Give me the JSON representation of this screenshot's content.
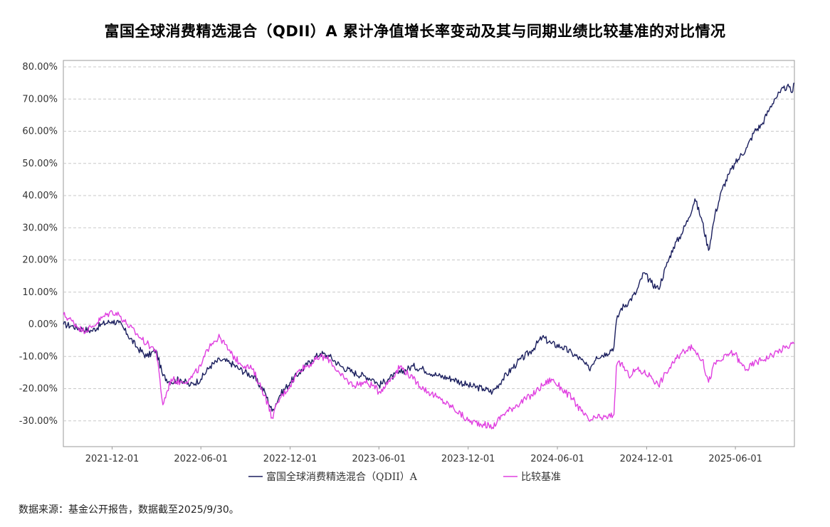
{
  "title": "富国全球消费精选混合（QDII）A 累计净值增长率变动及其与同期业绩比较基准的对比情况",
  "source_note": "数据来源：基金公开报告，数据截至2025/9/30。",
  "chart_data": {
    "type": "line",
    "title": "富国全球消费精选混合（QDII）A 累计净值增长率变动及其与同期业绩比较基准的对比情况",
    "xlabel": "",
    "ylabel": "",
    "x_range": [
      "2021-08-23",
      "2025-09-30"
    ],
    "x_tick_labels": [
      "2021-12-01",
      "2022-06-01",
      "2022-12-01",
      "2023-06-01",
      "2023-12-01",
      "2024-06-01",
      "2024-12-01",
      "2025-06-01"
    ],
    "y_tick_labels": [
      "80.00%",
      "70.00%",
      "60.00%",
      "50.00%",
      "40.00%",
      "30.00%",
      "20.00%",
      "10.00%",
      "0.00%",
      "-10.00%",
      "-20.00%",
      "-30.00%"
    ],
    "ylim": [
      -38,
      82
    ],
    "y_unit": "%",
    "grid": "horizontal dashed",
    "legend_position": "bottom-center",
    "series": [
      {
        "name": "富国全球消费精选混合（QDII）A",
        "color": "#1b1f5e",
        "points": [
          [
            "2021-08-23",
            0
          ],
          [
            "2021-09-10",
            -0.5
          ],
          [
            "2021-10-01",
            -1.5
          ],
          [
            "2021-10-20",
            -2
          ],
          [
            "2021-11-10",
            0
          ],
          [
            "2021-12-01",
            1
          ],
          [
            "2021-12-15",
            0.5
          ],
          [
            "2022-01-01",
            -3
          ],
          [
            "2022-01-20",
            -7
          ],
          [
            "2022-02-10",
            -10
          ],
          [
            "2022-03-01",
            -8
          ],
          [
            "2022-03-15",
            -16
          ],
          [
            "2022-04-01",
            -18
          ],
          [
            "2022-04-20",
            -17
          ],
          [
            "2022-05-10",
            -19
          ],
          [
            "2022-06-01",
            -17
          ],
          [
            "2022-06-20",
            -13
          ],
          [
            "2022-07-10",
            -11
          ],
          [
            "2022-08-01",
            -12
          ],
          [
            "2022-08-20",
            -14
          ],
          [
            "2022-09-15",
            -16
          ],
          [
            "2022-10-10",
            -21
          ],
          [
            "2022-10-25",
            -27
          ],
          [
            "2022-11-10",
            -22
          ],
          [
            "2022-12-01",
            -18
          ],
          [
            "2022-12-20",
            -15
          ],
          [
            "2023-01-15",
            -11
          ],
          [
            "2023-02-01",
            -9
          ],
          [
            "2023-02-20",
            -10
          ],
          [
            "2023-03-15",
            -13
          ],
          [
            "2023-04-10",
            -15
          ],
          [
            "2023-05-01",
            -16
          ],
          [
            "2023-05-20",
            -17
          ],
          [
            "2023-06-01",
            -19
          ],
          [
            "2023-06-20",
            -17
          ],
          [
            "2023-07-15",
            -15
          ],
          [
            "2023-08-10",
            -13
          ],
          [
            "2023-09-01",
            -14
          ],
          [
            "2023-10-01",
            -16
          ],
          [
            "2023-11-01",
            -17
          ],
          [
            "2023-12-01",
            -19
          ],
          [
            "2024-01-01",
            -20
          ],
          [
            "2024-01-20",
            -21
          ],
          [
            "2024-02-10",
            -17
          ],
          [
            "2024-03-10",
            -12
          ],
          [
            "2024-04-10",
            -8
          ],
          [
            "2024-05-01",
            -4
          ],
          [
            "2024-05-20",
            -6
          ],
          [
            "2024-06-10",
            -7
          ],
          [
            "2024-07-01",
            -9
          ],
          [
            "2024-07-20",
            -11
          ],
          [
            "2024-08-05",
            -14
          ],
          [
            "2024-08-20",
            -10
          ],
          [
            "2024-09-10",
            -9
          ],
          [
            "2024-09-25",
            -7
          ],
          [
            "2024-09-30",
            1
          ],
          [
            "2024-10-10",
            5
          ],
          [
            "2024-10-25",
            7
          ],
          [
            "2024-11-10",
            10
          ],
          [
            "2024-11-25",
            16
          ],
          [
            "2024-12-10",
            13
          ],
          [
            "2024-12-25",
            11
          ],
          [
            "2025-01-10",
            18
          ],
          [
            "2025-01-25",
            24
          ],
          [
            "2025-02-10",
            28
          ],
          [
            "2025-02-25",
            33
          ],
          [
            "2025-03-10",
            39
          ],
          [
            "2025-03-25",
            32
          ],
          [
            "2025-04-07",
            23
          ],
          [
            "2025-04-20",
            34
          ],
          [
            "2025-05-05",
            42
          ],
          [
            "2025-05-20",
            47
          ],
          [
            "2025-06-01",
            50
          ],
          [
            "2025-06-10",
            52
          ],
          [
            "2025-06-25",
            55
          ],
          [
            "2025-07-10",
            60
          ],
          [
            "2025-07-25",
            62
          ],
          [
            "2025-08-10",
            67
          ],
          [
            "2025-08-20",
            70
          ],
          [
            "2025-09-01",
            72
          ],
          [
            "2025-09-15",
            74
          ],
          [
            "2025-09-25",
            72
          ],
          [
            "2025-09-30",
            75
          ]
        ]
      },
      {
        "name": "比较基准",
        "color": "#e040e0",
        "points": [
          [
            "2021-08-23",
            3
          ],
          [
            "2021-09-10",
            1
          ],
          [
            "2021-10-01",
            -2
          ],
          [
            "2021-10-20",
            -1
          ],
          [
            "2021-11-10",
            2
          ],
          [
            "2021-12-01",
            4
          ],
          [
            "2021-12-15",
            3
          ],
          [
            "2022-01-01",
            0
          ],
          [
            "2022-01-20",
            -3
          ],
          [
            "2022-02-10",
            -6
          ],
          [
            "2022-03-01",
            -8
          ],
          [
            "2022-03-15",
            -25
          ],
          [
            "2022-04-01",
            -17
          ],
          [
            "2022-04-20",
            -18
          ],
          [
            "2022-05-10",
            -17
          ],
          [
            "2022-06-01",
            -13
          ],
          [
            "2022-06-20",
            -6
          ],
          [
            "2022-07-10",
            -4
          ],
          [
            "2022-08-01",
            -9
          ],
          [
            "2022-08-20",
            -12
          ],
          [
            "2022-09-15",
            -14
          ],
          [
            "2022-10-10",
            -22
          ],
          [
            "2022-10-25",
            -29
          ],
          [
            "2022-11-10",
            -23
          ],
          [
            "2022-12-01",
            -19
          ],
          [
            "2022-12-20",
            -14
          ],
          [
            "2023-01-15",
            -12
          ],
          [
            "2023-02-01",
            -10
          ],
          [
            "2023-02-20",
            -11
          ],
          [
            "2023-03-15",
            -16
          ],
          [
            "2023-04-10",
            -19
          ],
          [
            "2023-05-01",
            -18
          ],
          [
            "2023-05-20",
            -19
          ],
          [
            "2023-06-01",
            -21
          ],
          [
            "2023-06-20",
            -18
          ],
          [
            "2023-07-15",
            -13
          ],
          [
            "2023-08-10",
            -17
          ],
          [
            "2023-09-01",
            -20
          ],
          [
            "2023-10-01",
            -23
          ],
          [
            "2023-11-01",
            -26
          ],
          [
            "2023-12-01",
            -30
          ],
          [
            "2024-01-01",
            -31
          ],
          [
            "2024-01-20",
            -32
          ],
          [
            "2024-02-10",
            -28
          ],
          [
            "2024-03-10",
            -25
          ],
          [
            "2024-04-10",
            -22
          ],
          [
            "2024-05-01",
            -19
          ],
          [
            "2024-05-20",
            -17
          ],
          [
            "2024-06-10",
            -20
          ],
          [
            "2024-07-01",
            -23
          ],
          [
            "2024-07-20",
            -27
          ],
          [
            "2024-08-05",
            -30
          ],
          [
            "2024-08-20",
            -29
          ],
          [
            "2024-09-10",
            -29
          ],
          [
            "2024-09-25",
            -28
          ],
          [
            "2024-09-30",
            -13
          ],
          [
            "2024-10-10",
            -12
          ],
          [
            "2024-10-25",
            -16
          ],
          [
            "2024-11-10",
            -14
          ],
          [
            "2024-11-25",
            -15
          ],
          [
            "2024-12-10",
            -16
          ],
          [
            "2024-12-25",
            -19
          ],
          [
            "2025-01-10",
            -15
          ],
          [
            "2025-01-25",
            -12
          ],
          [
            "2025-02-10",
            -9
          ],
          [
            "2025-02-25",
            -7
          ],
          [
            "2025-03-10",
            -8
          ],
          [
            "2025-03-25",
            -11
          ],
          [
            "2025-04-07",
            -18
          ],
          [
            "2025-04-20",
            -12
          ],
          [
            "2025-05-05",
            -11
          ],
          [
            "2025-05-20",
            -9
          ],
          [
            "2025-06-01",
            -9
          ],
          [
            "2025-06-10",
            -12
          ],
          [
            "2025-06-25",
            -14
          ],
          [
            "2025-07-10",
            -12
          ],
          [
            "2025-07-25",
            -11
          ],
          [
            "2025-08-10",
            -10
          ],
          [
            "2025-08-20",
            -9
          ],
          [
            "2025-09-01",
            -8
          ],
          [
            "2025-09-15",
            -7
          ],
          [
            "2025-09-25",
            -6
          ],
          [
            "2025-09-30",
            -6
          ]
        ]
      }
    ]
  }
}
